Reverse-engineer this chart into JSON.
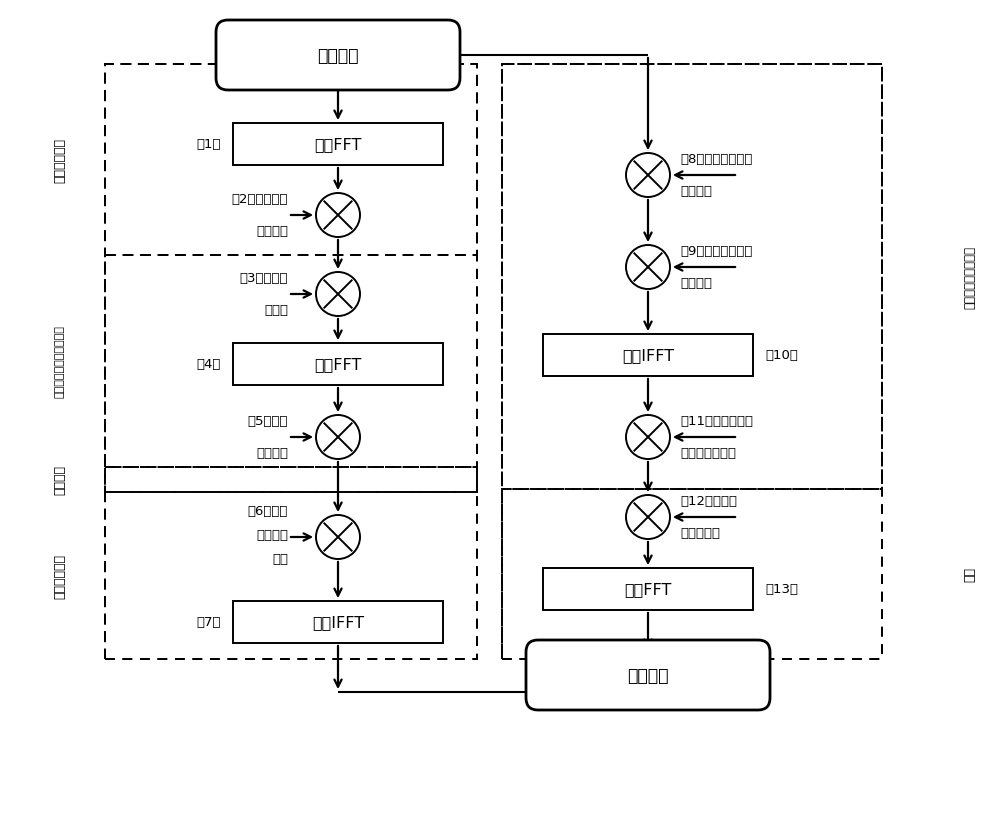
{
  "bg": "#ffffff",
  "lc": "#000000",
  "start_label": "原始数据",
  "end_label": "输出图像",
  "b1": "距离FFT",
  "b4": "方位FFT",
  "b7": "距离IFFT",
  "b10": "方位IFFT",
  "b13": "方位FFT",
  "n1": "（1）",
  "n4": "（4）",
  "n7": "（7）",
  "n10": "（10）",
  "n13": "（13）",
  "c2_lines": [
    "（2）距离脉压",
    "参考函数"
  ],
  "c3_lines": [
    "（3）走动校",
    "正因子"
  ],
  "c5_lines": [
    "（5）弯曲",
    "校正因子"
  ],
  "c6_lines": [
    "（6）二次",
    "距离压缩",
    "因子"
  ],
  "c8_lines": [
    "（8）方位高次相位",
    "补偿因子"
  ],
  "c9_lines": [
    "（9）方位高阶非性",
    "变标因子"
  ],
  "c11_lines": [
    "（11）方位剩余高",
    "次相位补偿因子"
  ],
  "c12_lines": [
    "（12）方位去",
    "斜处理因子"
  ],
  "lbl_sec1": "距离脉压处理",
  "lbl_sec2": "走动校正、弯曲校正处理",
  "lbl_sec3": "弯曲校正",
  "lbl_sec4": "二次距离压缩",
  "lbl_rsec1": "距离非线性变标系数",
  "lbl_rsec2": "去斜"
}
